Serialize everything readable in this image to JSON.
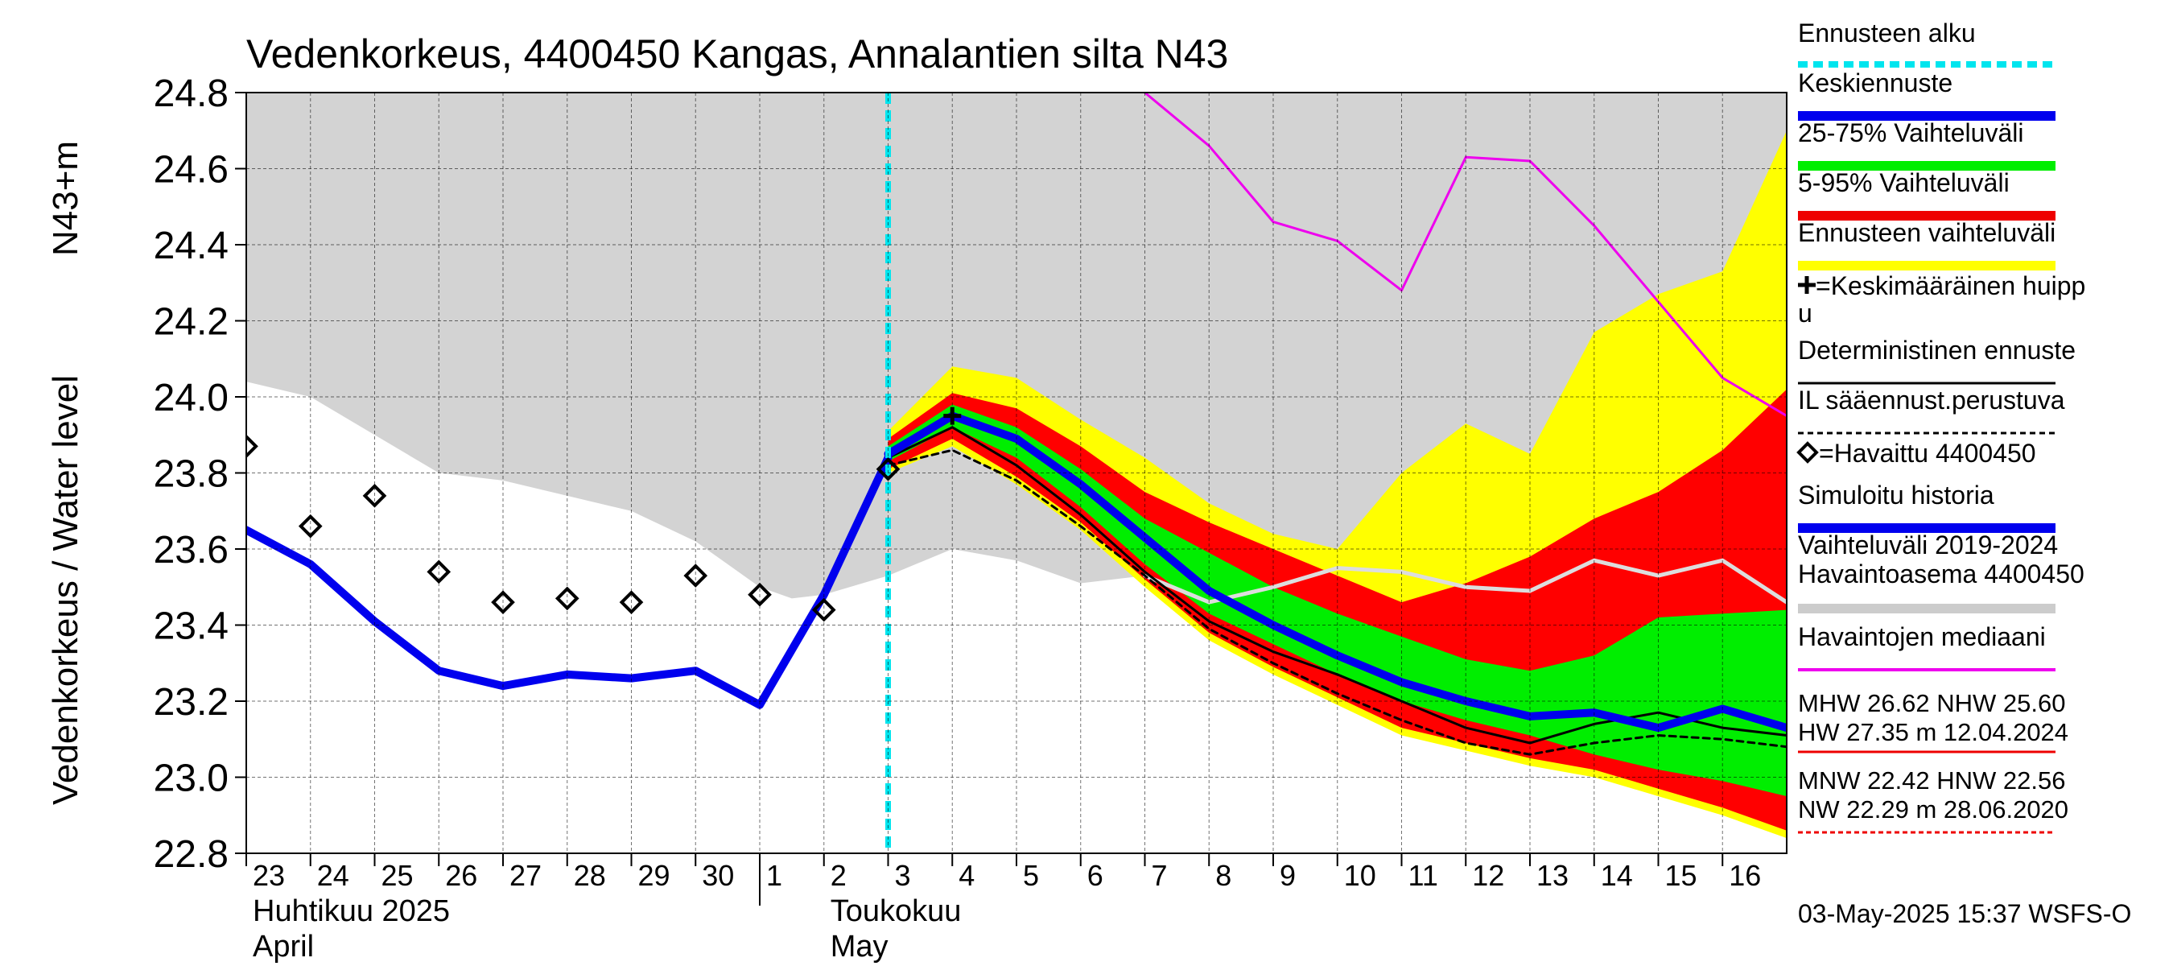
{
  "chart_data": {
    "type": "area",
    "title": "Vedenkorkeus, 4400450 Kangas, Annalantien silta N43",
    "ylabel": "Vedenkorkeus / Water level",
    "ylabel2": "N43+m",
    "ylim": [
      22.8,
      24.8
    ],
    "yticks": [
      "24.8",
      "24.6",
      "24.4",
      "24.2",
      "24.0",
      "23.8",
      "23.6",
      "23.4",
      "23.2",
      "23.0",
      "22.8"
    ],
    "grid": true,
    "x_range": [
      "2025-04-23",
      "2025-05-17"
    ],
    "x_ticks": [
      {
        "label": "23",
        "date": "2025-04-23"
      },
      {
        "label": "24",
        "date": "2025-04-24"
      },
      {
        "label": "25",
        "date": "2025-04-25"
      },
      {
        "label": "26",
        "date": "2025-04-26"
      },
      {
        "label": "27",
        "date": "2025-04-27"
      },
      {
        "label": "28",
        "date": "2025-04-28"
      },
      {
        "label": "29",
        "date": "2025-04-29"
      },
      {
        "label": "30",
        "date": "2025-04-30"
      },
      {
        "label": "1",
        "date": "2025-05-01"
      },
      {
        "label": "2",
        "date": "2025-05-02"
      },
      {
        "label": "3",
        "date": "2025-05-03"
      },
      {
        "label": "4",
        "date": "2025-05-04"
      },
      {
        "label": "5",
        "date": "2025-05-05"
      },
      {
        "label": "6",
        "date": "2025-05-06"
      },
      {
        "label": "7",
        "date": "2025-05-07"
      },
      {
        "label": "8",
        "date": "2025-05-08"
      },
      {
        "label": "9",
        "date": "2025-05-09"
      },
      {
        "label": "10",
        "date": "2025-05-10"
      },
      {
        "label": "11",
        "date": "2025-05-11"
      },
      {
        "label": "12",
        "date": "2025-05-12"
      },
      {
        "label": "13",
        "date": "2025-05-13"
      },
      {
        "label": "14",
        "date": "2025-05-14"
      },
      {
        "label": "15",
        "date": "2025-05-15"
      },
      {
        "label": "16",
        "date": "2025-05-16"
      }
    ],
    "month_labels": [
      {
        "line1": "Huhtikuu  2025",
        "line2": "April",
        "date": "2025-04-23"
      },
      {
        "line1": "Toukokuu",
        "line2": "May",
        "date": "2025-05-02"
      }
    ],
    "month_divider_date": "2025-05-01",
    "forecast_start": "2025-05-03",
    "legend": {
      "placement": "right",
      "entries": [
        {
          "label": "Ennusteen alku",
          "color": "#00e5ee",
          "style": "dotted-line"
        },
        {
          "label": "Keskiennuste",
          "color": "#0000ee",
          "style": "thick-line"
        },
        {
          "label": "25-75% Vaihteluväli",
          "color": "#00ee00",
          "style": "thick-line"
        },
        {
          "label": "5-95% Vaihteluväli",
          "color": "#ee0000",
          "style": "thick-line"
        },
        {
          "label": "Ennusteen vaihteluväli",
          "color": "#ffff00",
          "style": "thick-line"
        },
        {
          "label": "=Keskimääräinen huipp",
          "label2": "u",
          "color": "#000000",
          "style": "plus-marker"
        },
        {
          "label": "Deterministinen ennuste",
          "color": "#000000",
          "style": "thin-line"
        },
        {
          "label": "IL sääennust.perustuva",
          "color": "#000000",
          "style": "dashed-line"
        },
        {
          "label": "=Havaittu 4400450",
          "color": "#000000",
          "style": "diamond-marker"
        },
        {
          "label": "Simuloitu historia",
          "color": "#0000ee",
          "style": "thick-line"
        },
        {
          "label": "Vaihteluväli 2019-2024",
          "label2": " Havaintoasema 4400450",
          "color": "#cccccc",
          "style": "thick-line"
        },
        {
          "label": "Havaintojen mediaani",
          "color": "#ee00ee",
          "style": "line"
        }
      ]
    },
    "stats": {
      "high": {
        "line1": "MHW  26.62 NHW  25.60",
        "line2": "HW  27.35 m 12.04.2024",
        "color": "#ee0000"
      },
      "low": {
        "line1": "MNW  22.42 HNW  22.56",
        "line2": "NW  22.29 m 28.06.2020",
        "color": "#ee0000"
      }
    },
    "footer": "03-May-2025 15:37 WSFS-O",
    "series": [
      {
        "name": "Vaihteluväli 2019-2024",
        "kind": "band",
        "color": "#d3d3d3",
        "x": [
          "2025-04-23",
          "2025-04-24",
          "2025-04-25",
          "2025-04-26",
          "2025-04-27",
          "2025-04-28",
          "2025-04-29",
          "2025-04-30",
          "2025-05-01",
          "2025-05-01T12:00",
          "2025-05-02",
          "2025-05-03",
          "2025-05-04",
          "2025-05-05",
          "2025-05-06",
          "2025-05-07",
          "2025-05-08",
          "2025-05-09",
          "2025-05-10",
          "2025-05-11",
          "2025-05-12",
          "2025-05-13",
          "2025-05-14",
          "2025-05-15",
          "2025-05-16",
          "2025-05-17"
        ],
        "low": [
          24.04,
          24.0,
          23.9,
          23.8,
          23.78,
          23.74,
          23.7,
          23.62,
          23.5,
          23.47,
          23.48,
          23.53,
          23.6,
          23.57,
          23.51,
          23.53,
          23.52,
          23.53,
          23.55,
          23.53,
          23.52,
          23.5,
          23.52,
          23.5,
          23.5,
          23.48
        ],
        "high": [
          24.8,
          24.8,
          24.8,
          24.8,
          24.8,
          24.8,
          24.8,
          24.8,
          24.8,
          24.8,
          24.8,
          24.8,
          24.8,
          24.8,
          24.8,
          24.8,
          24.8,
          24.8,
          24.8,
          24.8,
          24.8,
          24.8,
          24.8,
          24.8,
          24.8,
          24.8
        ]
      },
      {
        "name": "Ennusteen vaihteluväli",
        "kind": "band",
        "color": "#ffff00",
        "x": [
          "2025-05-03",
          "2025-05-04",
          "2025-05-05",
          "2025-05-06",
          "2025-05-07",
          "2025-05-08",
          "2025-05-09",
          "2025-05-10",
          "2025-05-11",
          "2025-05-12",
          "2025-05-13",
          "2025-05-14",
          "2025-05-15",
          "2025-05-16",
          "2025-05-17"
        ],
        "low": [
          23.8,
          23.87,
          23.77,
          23.65,
          23.5,
          23.36,
          23.27,
          23.19,
          23.11,
          23.07,
          23.03,
          23.0,
          22.95,
          22.9,
          22.84
        ],
        "high": [
          23.91,
          24.08,
          24.05,
          23.94,
          23.84,
          23.72,
          23.64,
          23.6,
          23.8,
          23.93,
          23.85,
          24.17,
          24.27,
          24.33,
          24.7
        ]
      },
      {
        "name": "5-95% Vaihteluväli",
        "kind": "band",
        "color": "#ff0000",
        "x": [
          "2025-05-03",
          "2025-05-04",
          "2025-05-05",
          "2025-05-06",
          "2025-05-07",
          "2025-05-08",
          "2025-05-09",
          "2025-05-10",
          "2025-05-11",
          "2025-05-12",
          "2025-05-13",
          "2025-05-14",
          "2025-05-15",
          "2025-05-16",
          "2025-05-17"
        ],
        "low": [
          23.81,
          23.89,
          23.79,
          23.67,
          23.52,
          23.38,
          23.29,
          23.21,
          23.13,
          23.09,
          23.05,
          23.02,
          22.97,
          22.92,
          22.86
        ],
        "high": [
          23.89,
          24.01,
          23.97,
          23.87,
          23.75,
          23.67,
          23.6,
          23.53,
          23.46,
          23.51,
          23.58,
          23.68,
          23.75,
          23.86,
          24.02
        ]
      },
      {
        "name": "25-75% Vaihteluväli",
        "kind": "band",
        "color": "#00ee00",
        "x": [
          "2025-05-03",
          "2025-05-04",
          "2025-05-05",
          "2025-05-06",
          "2025-05-07",
          "2025-05-08",
          "2025-05-09",
          "2025-05-10",
          "2025-05-11",
          "2025-05-12",
          "2025-05-13",
          "2025-05-14",
          "2025-05-15",
          "2025-05-16",
          "2025-05-17"
        ],
        "low": [
          23.83,
          23.92,
          23.84,
          23.71,
          23.56,
          23.43,
          23.35,
          23.27,
          23.2,
          23.15,
          23.11,
          23.06,
          23.02,
          22.99,
          22.95
        ],
        "high": [
          23.87,
          23.98,
          23.92,
          23.81,
          23.68,
          23.59,
          23.5,
          23.43,
          23.37,
          23.31,
          23.28,
          23.32,
          23.42,
          23.43,
          23.44
        ]
      },
      {
        "name": "Havaintojen mediaani",
        "kind": "line",
        "color": "#ee00ee",
        "x": [
          "2025-05-07",
          "2025-05-08",
          "2025-05-09",
          "2025-05-10",
          "2025-05-11",
          "2025-05-12",
          "2025-05-13",
          "2025-05-14",
          "2025-05-15",
          "2025-05-16",
          "2025-05-17"
        ],
        "values": [
          24.8,
          24.66,
          24.46,
          24.41,
          24.28,
          24.63,
          24.62,
          24.45,
          24.25,
          24.05,
          23.95
        ]
      },
      {
        "name": "Mediaani (vaaleanharmaa)",
        "kind": "line",
        "color": "#dddddd",
        "x": [
          "2025-05-07",
          "2025-05-08",
          "2025-05-09",
          "2025-05-10",
          "2025-05-11",
          "2025-05-12",
          "2025-05-13",
          "2025-05-14",
          "2025-05-15",
          "2025-05-16",
          "2025-05-17"
        ],
        "values": [
          23.53,
          23.46,
          23.5,
          23.55,
          23.54,
          23.5,
          23.49,
          23.57,
          23.53,
          23.57,
          23.46
        ]
      },
      {
        "name": "Deterministinen ennuste",
        "kind": "line",
        "color": "#000000",
        "x": [
          "2025-05-03",
          "2025-05-04",
          "2025-05-05",
          "2025-05-06",
          "2025-05-07",
          "2025-05-08",
          "2025-05-09",
          "2025-05-10",
          "2025-05-11",
          "2025-05-12",
          "2025-05-13",
          "2025-05-14",
          "2025-05-15",
          "2025-05-16",
          "2025-05-17"
        ],
        "values": [
          23.84,
          23.92,
          23.82,
          23.69,
          23.54,
          23.41,
          23.33,
          23.27,
          23.2,
          23.13,
          23.09,
          23.14,
          23.17,
          23.13,
          23.11
        ]
      },
      {
        "name": "IL sääennust.perustuva",
        "kind": "dashed",
        "color": "#000000",
        "x": [
          "2025-05-03",
          "2025-05-04",
          "2025-05-05",
          "2025-05-06",
          "2025-05-07",
          "2025-05-08",
          "2025-05-09",
          "2025-05-10",
          "2025-05-11",
          "2025-05-12",
          "2025-05-13",
          "2025-05-14",
          "2025-05-15",
          "2025-05-16",
          "2025-05-17"
        ],
        "values": [
          23.82,
          23.86,
          23.78,
          23.66,
          23.53,
          23.39,
          23.3,
          23.22,
          23.15,
          23.09,
          23.06,
          23.09,
          23.11,
          23.1,
          23.08
        ]
      },
      {
        "name": "Simuloitu historia",
        "kind": "thick",
        "color": "#0000ee",
        "x": [
          "2025-04-23",
          "2025-04-24",
          "2025-04-25",
          "2025-04-26",
          "2025-04-27",
          "2025-04-28",
          "2025-04-29",
          "2025-04-30",
          "2025-05-01",
          "2025-05-02",
          "2025-05-03"
        ],
        "values": [
          23.65,
          23.56,
          23.41,
          23.28,
          23.24,
          23.27,
          23.26,
          23.28,
          23.19,
          23.48,
          23.84
        ]
      },
      {
        "name": "Keskiennuste",
        "kind": "thick",
        "color": "#0000ee",
        "x": [
          "2025-05-03",
          "2025-05-04",
          "2025-05-05",
          "2025-05-06",
          "2025-05-07",
          "2025-05-08",
          "2025-05-09",
          "2025-05-10",
          "2025-05-11",
          "2025-05-12",
          "2025-05-13",
          "2025-05-14",
          "2025-05-15",
          "2025-05-16",
          "2025-05-17"
        ],
        "values": [
          23.85,
          23.95,
          23.89,
          23.77,
          23.63,
          23.49,
          23.4,
          23.32,
          23.25,
          23.2,
          23.16,
          23.17,
          23.13,
          23.18,
          23.13
        ]
      }
    ],
    "observed": {
      "name": "Havaittu 4400450",
      "x": [
        "2025-04-23",
        "2025-04-24",
        "2025-04-25",
        "2025-04-26",
        "2025-04-27",
        "2025-04-28",
        "2025-04-29",
        "2025-04-30",
        "2025-05-01",
        "2025-05-02",
        "2025-05-03"
      ],
      "values": [
        23.87,
        23.66,
        23.74,
        23.54,
        23.46,
        23.47,
        23.46,
        23.53,
        23.48,
        23.44,
        23.81
      ]
    },
    "mean_peak": {
      "name": "Keskimääräinen huippu",
      "x": "2025-05-04",
      "value": 23.95
    }
  }
}
